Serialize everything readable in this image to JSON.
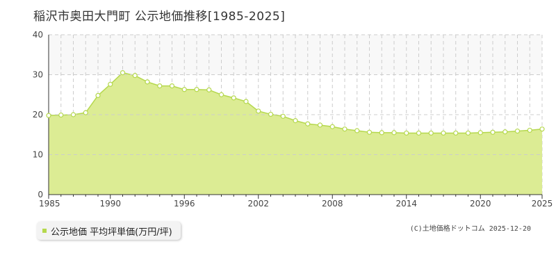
{
  "title": "稲沢市奥田大門町 公示地価推移[1985-2025]",
  "legend": {
    "label": "公示地価 平均坪単価(万円/坪)"
  },
  "credit": "(C)土地価格ドットコム 2025-12-20",
  "colors": {
    "area_fill": "#dcec94",
    "line": "#b5d84d",
    "marker_stroke": "#b5d84d",
    "marker_fill": "#ffffff",
    "upper_band": "#f8f8f8",
    "grid": "#cccccc",
    "axis": "#333333"
  },
  "chart_data": {
    "type": "area",
    "title": "稲沢市奥田大門町 公示地価推移[1985-2025]",
    "xlabel": "",
    "ylabel": "",
    "x": [
      1985,
      1986,
      1987,
      1988,
      1989,
      1990,
      1991,
      1992,
      1993,
      1994,
      1995,
      1996,
      1997,
      1998,
      1999,
      2000,
      2001,
      2002,
      2003,
      2004,
      2005,
      2006,
      2007,
      2008,
      2009,
      2010,
      2011,
      2012,
      2013,
      2014,
      2015,
      2016,
      2017,
      2018,
      2019,
      2020,
      2021,
      2022,
      2023,
      2024,
      2025
    ],
    "series": [
      {
        "name": "公示地価 平均坪単価(万円/坪)",
        "values": [
          19.8,
          19.9,
          20.0,
          20.5,
          24.8,
          27.6,
          30.5,
          29.8,
          28.2,
          27.2,
          27.2,
          26.3,
          26.3,
          26.2,
          25.0,
          24.2,
          23.3,
          20.9,
          20.1,
          19.6,
          18.5,
          17.7,
          17.4,
          17.0,
          16.4,
          16.0,
          15.6,
          15.5,
          15.5,
          15.4,
          15.4,
          15.4,
          15.4,
          15.4,
          15.4,
          15.5,
          15.6,
          15.7,
          15.9,
          16.1,
          16.4
        ]
      }
    ],
    "x_ticks": [
      "1985",
      "1990",
      "1996",
      "2002",
      "2008",
      "2014",
      "2020",
      "2025"
    ],
    "x_tick_values": [
      1985,
      1990,
      1996,
      2002,
      2008,
      2014,
      2020,
      2025
    ],
    "y_ticks": [
      "0",
      "10",
      "20",
      "30",
      "40"
    ],
    "y_tick_values": [
      0,
      10,
      20,
      30,
      40
    ],
    "xlim": [
      1985,
      2025
    ],
    "ylim": [
      0,
      40
    ],
    "grid": true,
    "legend_position": "bottom-left"
  }
}
